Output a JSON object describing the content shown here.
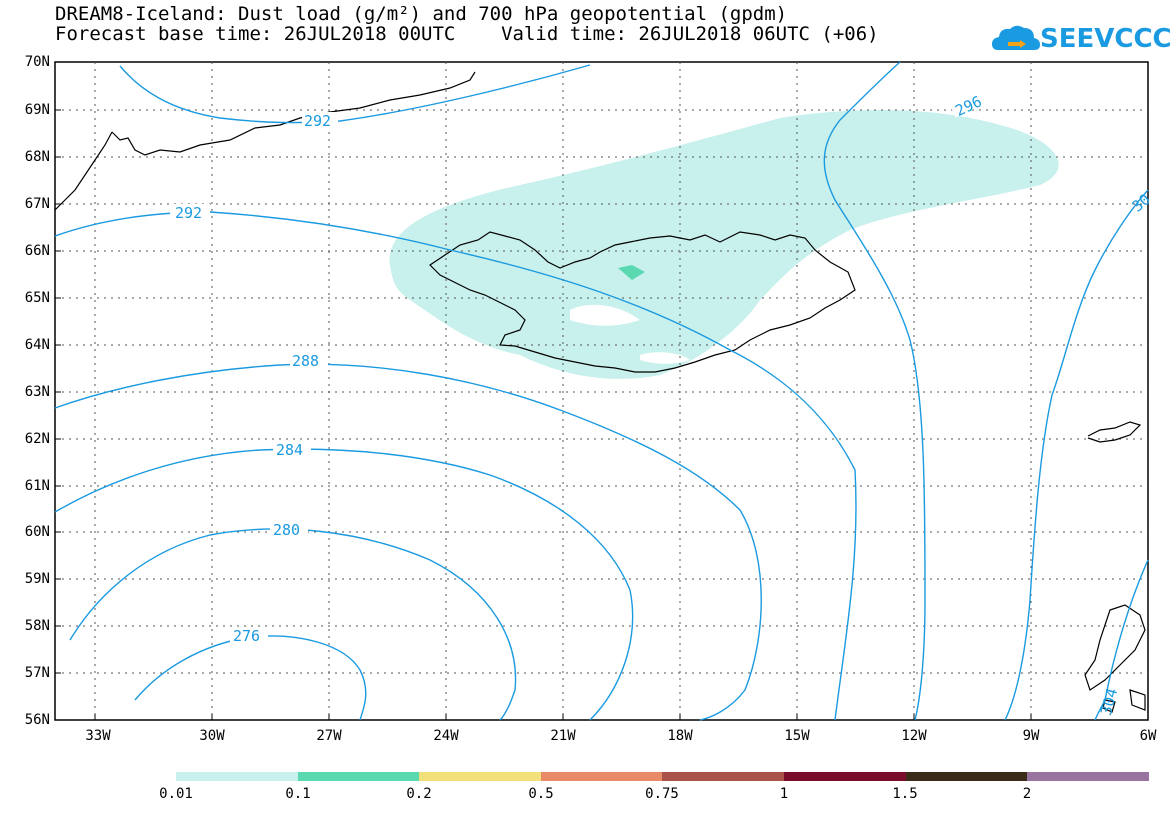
{
  "title_line1": "DREAM8-Iceland: Dust load (g/m²) and 700 hPa geopotential (gpdm)",
  "title_line2": "Forecast base time: 26JUL2018 00UTC    Valid time: 26JUL2018 06UTC (+06)",
  "logo_text": "SEEVCCC",
  "lat_labels": [
    "70N",
    "69N",
    "68N",
    "67N",
    "66N",
    "65N",
    "64N",
    "63N",
    "62N",
    "61N",
    "60N",
    "59N",
    "58N",
    "57N",
    "56N"
  ],
  "lon_labels": [
    "33W",
    "30W",
    "27W",
    "24W",
    "21W",
    "18W",
    "15W",
    "12W",
    "9W",
    "6W"
  ],
  "contour_labels": [
    "292",
    "292",
    "296",
    "30",
    "288",
    "284",
    "280",
    "276",
    "304"
  ],
  "colorbar": {
    "colors": [
      "#c8f0ec",
      "#5ad8b0",
      "#f2e07a",
      "#e88a68",
      "#a8524a",
      "#7a0c2c",
      "#3a2a18",
      "#9a74a0"
    ],
    "labels": [
      "0.01",
      "0.1",
      "0.2",
      "0.5",
      "0.75",
      "1",
      "1.5",
      "2"
    ]
  },
  "map": {
    "dust_light_color": "#c8f0ec",
    "dust_medium_color": "#5ad8b0",
    "contour_color": "#1a9ae0"
  }
}
